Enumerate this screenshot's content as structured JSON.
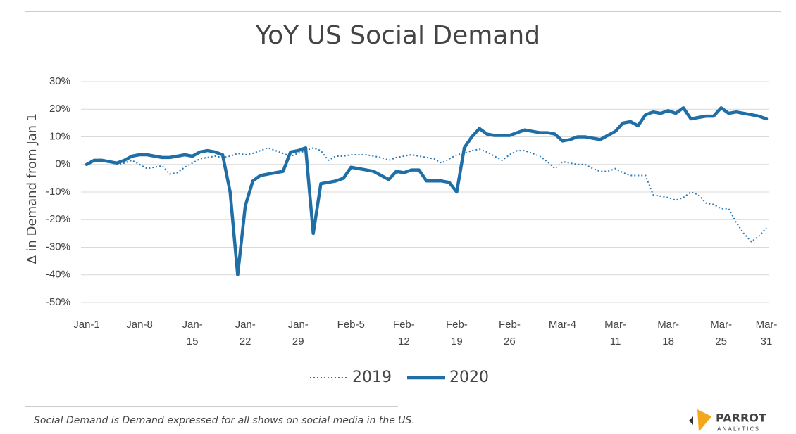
{
  "chart_data": {
    "type": "line",
    "title": "YoY US Social Demand",
    "ylabel": "∆ in Demand  from Jan 1",
    "footnote": "Social Demand is Demand expressed for all shows on social media in the US.",
    "brand": "PARROT",
    "brand_sub": "ANALYTICS",
    "xlim": [
      0,
      90
    ],
    "xticks": [
      {
        "value": 0,
        "label": "Jan-1"
      },
      {
        "value": 7,
        "label": "Jan-8"
      },
      {
        "value": 14,
        "label": "Jan-15"
      },
      {
        "value": 21,
        "label": "Jan-22"
      },
      {
        "value": 28,
        "label": "Jan-29"
      },
      {
        "value": 35,
        "label": "Feb-5"
      },
      {
        "value": 42,
        "label": "Feb-12"
      },
      {
        "value": 49,
        "label": "Feb-19"
      },
      {
        "value": 56,
        "label": "Feb-26"
      },
      {
        "value": 63,
        "label": "Mar-4"
      },
      {
        "value": 70,
        "label": "Mar-11"
      },
      {
        "value": 77,
        "label": "Mar-18"
      },
      {
        "value": 84,
        "label": "Mar-25"
      },
      {
        "value": 90,
        "label": "Mar-31"
      }
    ],
    "ylim": [
      -50,
      30
    ],
    "yticks": [
      {
        "value": 30,
        "label": "30%"
      },
      {
        "value": 20,
        "label": "20%"
      },
      {
        "value": 10,
        "label": "10%"
      },
      {
        "value": 0,
        "label": "0%"
      },
      {
        "value": -10,
        "label": "-10%"
      },
      {
        "value": -20,
        "label": "-20%"
      },
      {
        "value": -30,
        "label": "-30%"
      },
      {
        "value": -40,
        "label": "-40%"
      },
      {
        "value": -50,
        "label": "-50%"
      }
    ],
    "grid": true,
    "legend": "bottom",
    "x": [
      0,
      1,
      2,
      3,
      4,
      5,
      6,
      7,
      8,
      9,
      10,
      11,
      12,
      13,
      14,
      15,
      16,
      17,
      18,
      19,
      20,
      21,
      22,
      23,
      24,
      25,
      26,
      27,
      28,
      29,
      30,
      31,
      32,
      33,
      34,
      35,
      36,
      37,
      38,
      39,
      40,
      41,
      42,
      43,
      44,
      45,
      46,
      47,
      48,
      49,
      50,
      51,
      52,
      53,
      54,
      55,
      56,
      57,
      58,
      59,
      60,
      61,
      62,
      63,
      64,
      65,
      66,
      67,
      68,
      69,
      70,
      71,
      72,
      73,
      74,
      75,
      76,
      77,
      78,
      79,
      80,
      81,
      82,
      83,
      84,
      85,
      86,
      87,
      88,
      89,
      90
    ],
    "series": [
      {
        "name": "2019",
        "color": "#2a7ab8",
        "style": "dotted",
        "values": [
          0,
          1,
          2,
          1,
          0,
          0.5,
          1.5,
          0,
          -1.5,
          -1,
          -0.5,
          -3.5,
          -3,
          -1,
          0.5,
          2,
          2.5,
          3,
          2.5,
          3,
          4,
          3.5,
          4,
          5,
          6,
          5,
          4,
          3,
          4,
          5,
          6,
          5,
          1.5,
          3,
          3,
          3.5,
          3.5,
          3.5,
          3,
          2.5,
          1.5,
          2.5,
          3,
          3.5,
          3,
          2.5,
          2,
          0.5,
          2,
          3.5,
          4,
          5,
          5.5,
          4.5,
          3,
          1.5,
          3.5,
          5,
          5,
          4,
          3,
          1,
          -1.5,
          1,
          0.5,
          0,
          0,
          -1.5,
          -2.5,
          -2.5,
          -1.5,
          -3,
          -4,
          -4,
          -4,
          -11,
          -11.5,
          -12,
          -13,
          -12,
          -10,
          -11,
          -14,
          -14.5,
          -16,
          -16,
          -21,
          -25,
          -28,
          -26,
          -23
        ]
      },
      {
        "name": "2020",
        "color": "#1f6fa6",
        "style": "solid",
        "values": [
          0,
          1.5,
          1.5,
          1,
          0.5,
          1.5,
          3,
          3.5,
          3.5,
          3,
          2.5,
          2.5,
          3,
          3.5,
          3,
          4.5,
          5,
          4.5,
          3.5,
          -10,
          -40,
          -15,
          -6,
          -4,
          -3.5,
          -3,
          -2.5,
          4.5,
          5,
          6,
          -25,
          -7,
          -6.5,
          -6,
          -5,
          -1,
          -1.5,
          -2,
          -2.5,
          -4,
          -5.5,
          -2.5,
          -3,
          -2,
          -2,
          -6,
          -6,
          -6,
          -6.5,
          -10,
          6,
          10,
          13,
          11,
          10.5,
          10.5,
          10.5,
          11.5,
          12.5,
          12,
          11.5,
          11.5,
          11,
          8.5,
          9,
          10,
          10,
          9.5,
          9,
          10.5,
          12,
          15,
          15.5,
          14,
          18,
          19,
          18.5,
          19.5,
          18.5,
          20.5,
          16.5,
          17,
          17.5,
          17.5,
          20.5,
          18.5,
          19,
          18.5,
          18,
          17.5,
          16.5
        ]
      }
    ]
  }
}
